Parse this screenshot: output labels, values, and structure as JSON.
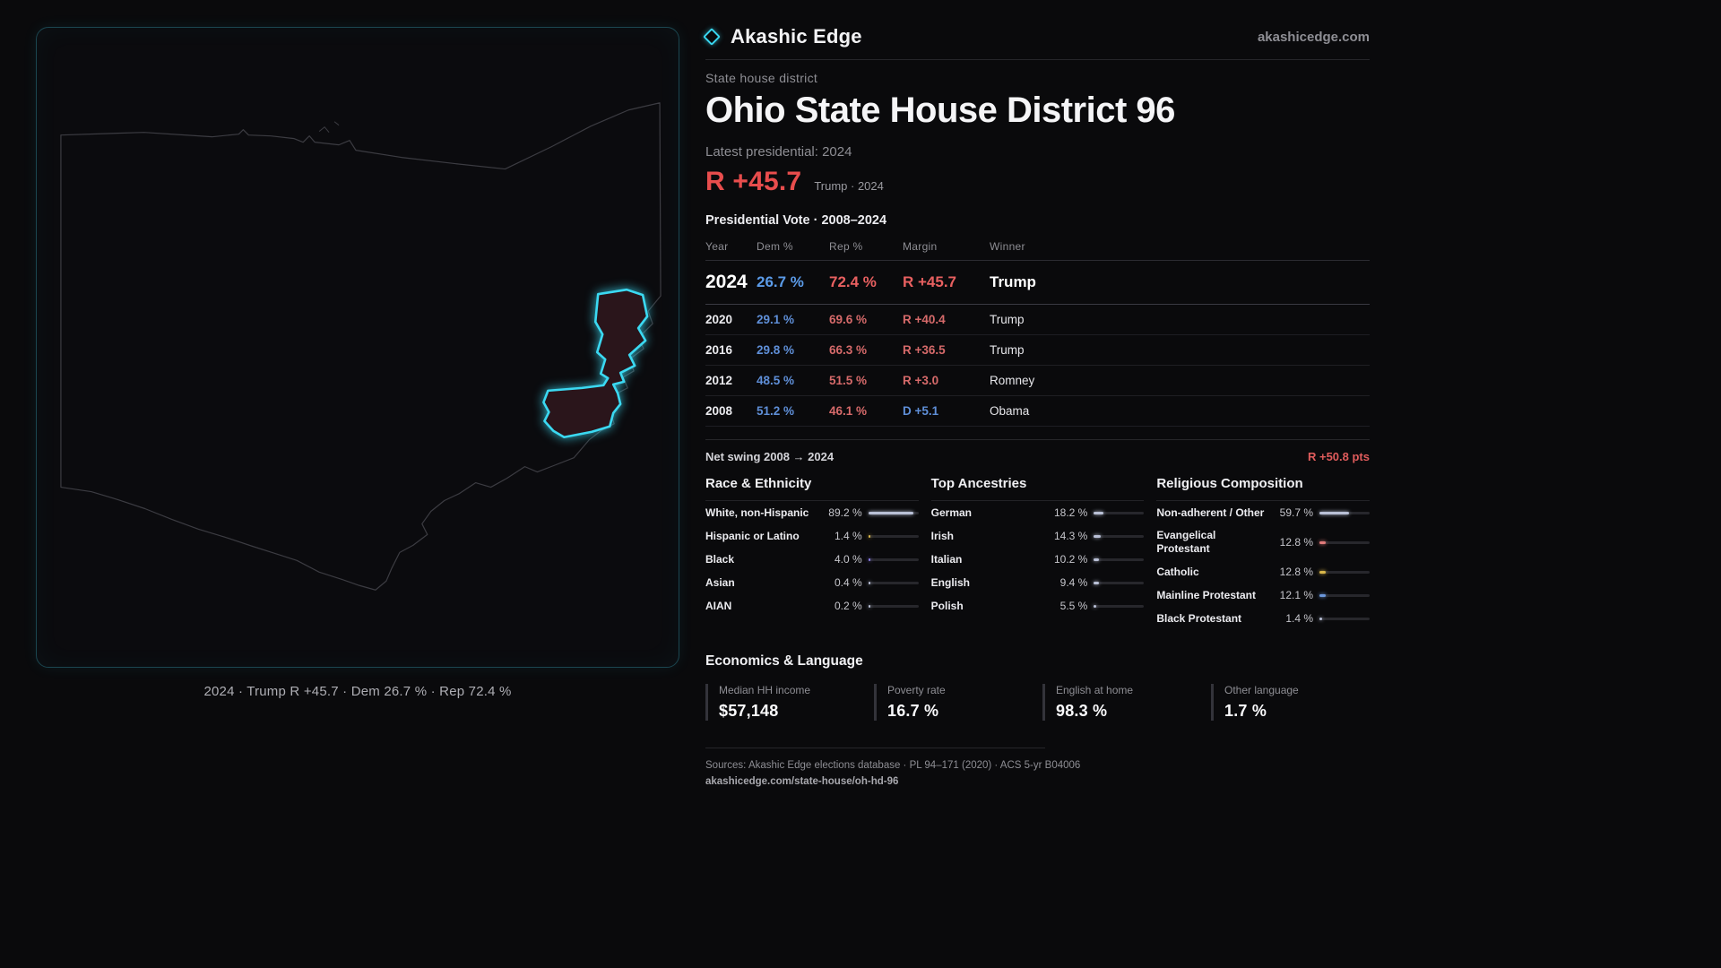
{
  "colors": {
    "background": "#0a0a0c",
    "accent_cyan": "#3bd9f2",
    "red": "#e84d4d",
    "blue": "#5f8fd8",
    "muted": "#8e8e94",
    "bar_default": "#b9c0d6"
  },
  "header": {
    "brand": "Akashic Edge",
    "site": "akashicedge.com"
  },
  "map": {
    "caption": "2024 · Trump R +45.7 · Dem 26.7 % · Rep 72.4 %"
  },
  "district": {
    "kicker": "State house district",
    "title": "Ohio State House District 96",
    "latest_label": "Latest presidential: 2024",
    "margin_value": "R +45.7",
    "margin_sub": "Trump · 2024"
  },
  "vote_table": {
    "title": "Presidential Vote · 2008–2024",
    "columns": [
      "Year",
      "Dem %",
      "Rep %",
      "Margin",
      "Winner"
    ],
    "rows": [
      {
        "year": "2024",
        "dem": "26.7 %",
        "rep": "72.4 %",
        "margin": "R +45.7",
        "margin_party": "R",
        "winner": "Trump",
        "emphasis": true
      },
      {
        "year": "2020",
        "dem": "29.1 %",
        "rep": "69.6 %",
        "margin": "R +40.4",
        "margin_party": "R",
        "winner": "Trump",
        "emphasis": false
      },
      {
        "year": "2016",
        "dem": "29.8 %",
        "rep": "66.3 %",
        "margin": "R +36.5",
        "margin_party": "R",
        "winner": "Trump",
        "emphasis": false
      },
      {
        "year": "2012",
        "dem": "48.5 %",
        "rep": "51.5 %",
        "margin": "R +3.0",
        "margin_party": "R",
        "winner": "Romney",
        "emphasis": false
      },
      {
        "year": "2008",
        "dem": "51.2 %",
        "rep": "46.1 %",
        "margin": "D +5.1",
        "margin_party": "D",
        "winner": "Obama",
        "emphasis": false
      }
    ]
  },
  "net_swing": {
    "label": "Net swing 2008 → 2024",
    "value": "R +50.8 pts"
  },
  "demographics": [
    {
      "title": "Race & Ethnicity",
      "rows": [
        {
          "label": "White, non-Hispanic",
          "value": "89.2 %",
          "pct": 89.2,
          "color": "#b9c0d6"
        },
        {
          "label": "Hispanic or Latino",
          "value": "1.4 %",
          "pct": 1.4,
          "color": "#d9b64a"
        },
        {
          "label": "Black",
          "value": "4.0 %",
          "pct": 4.0,
          "color": "#8a7ce8"
        },
        {
          "label": "Asian",
          "value": "0.4 %",
          "pct": 0.4,
          "color": "#b9c0d6"
        },
        {
          "label": "AIAN",
          "value": "0.2 %",
          "pct": 0.2,
          "color": "#b9c0d6"
        }
      ]
    },
    {
      "title": "Top Ancestries",
      "rows": [
        {
          "label": "German",
          "value": "18.2 %",
          "pct": 18.2,
          "color": "#b9c0d6"
        },
        {
          "label": "Irish",
          "value": "14.3 %",
          "pct": 14.3,
          "color": "#b9c0d6"
        },
        {
          "label": "Italian",
          "value": "10.2 %",
          "pct": 10.2,
          "color": "#b9c0d6"
        },
        {
          "label": "English",
          "value": "9.4 %",
          "pct": 9.4,
          "color": "#b9c0d6"
        },
        {
          "label": "Polish",
          "value": "5.5 %",
          "pct": 5.5,
          "color": "#b9c0d6"
        }
      ]
    },
    {
      "title": "Religious Composition",
      "rows": [
        {
          "label": "Non-adherent / Other",
          "value": "59.7 %",
          "pct": 59.7,
          "color": "#b9c0d6"
        },
        {
          "label": "Evangelical Protestant",
          "value": "12.8 %",
          "pct": 12.8,
          "color": "#e07a7a"
        },
        {
          "label": "Catholic",
          "value": "12.8 %",
          "pct": 12.8,
          "color": "#d9b64a"
        },
        {
          "label": "Mainline Protestant",
          "value": "12.1 %",
          "pct": 12.1,
          "color": "#6b97dc"
        },
        {
          "label": "Black Protestant",
          "value": "1.4 %",
          "pct": 1.4,
          "color": "#b9c0d6"
        }
      ]
    }
  ],
  "economics": {
    "title": "Economics & Language",
    "stats": [
      {
        "label": "Median HH income",
        "value": "$57,148"
      },
      {
        "label": "Poverty rate",
        "value": "16.7 %"
      },
      {
        "label": "English at home",
        "value": "98.3 %"
      },
      {
        "label": "Other language",
        "value": "1.7 %"
      }
    ]
  },
  "footer": {
    "sources": "Sources: Akashic Edge elections database · PL 94–171 (2020) · ACS 5-yr B04006",
    "permalink": "akashicedge.com/state-house/oh-hd-96"
  },
  "chart_data": [
    {
      "type": "table",
      "title": "Presidential Vote · 2008–2024",
      "columns": [
        "Year",
        "Dem %",
        "Rep %",
        "Margin",
        "Winner"
      ],
      "rows": [
        [
          "2024",
          26.7,
          72.4,
          "R +45.7",
          "Trump"
        ],
        [
          "2020",
          29.1,
          69.6,
          "R +40.4",
          "Trump"
        ],
        [
          "2016",
          29.8,
          66.3,
          "R +36.5",
          "Trump"
        ],
        [
          "2012",
          48.5,
          51.5,
          "R +3.0",
          "Romney"
        ],
        [
          "2008",
          51.2,
          46.1,
          "D +5.1",
          "Obama"
        ]
      ]
    },
    {
      "type": "bar",
      "title": "Race & Ethnicity",
      "categories": [
        "White, non-Hispanic",
        "Hispanic or Latino",
        "Black",
        "Asian",
        "AIAN"
      ],
      "values": [
        89.2,
        1.4,
        4.0,
        0.4,
        0.2
      ],
      "xlim": [
        0,
        100
      ],
      "ylabel": "%"
    },
    {
      "type": "bar",
      "title": "Top Ancestries",
      "categories": [
        "German",
        "Irish",
        "Italian",
        "English",
        "Polish"
      ],
      "values": [
        18.2,
        14.3,
        10.2,
        9.4,
        5.5
      ],
      "xlim": [
        0,
        100
      ],
      "ylabel": "%"
    },
    {
      "type": "bar",
      "title": "Religious Composition",
      "categories": [
        "Non-adherent / Other",
        "Evangelical Protestant",
        "Catholic",
        "Mainline Protestant",
        "Black Protestant"
      ],
      "values": [
        59.7,
        12.8,
        12.8,
        12.1,
        1.4
      ],
      "xlim": [
        0,
        100
      ],
      "ylabel": "%"
    }
  ]
}
